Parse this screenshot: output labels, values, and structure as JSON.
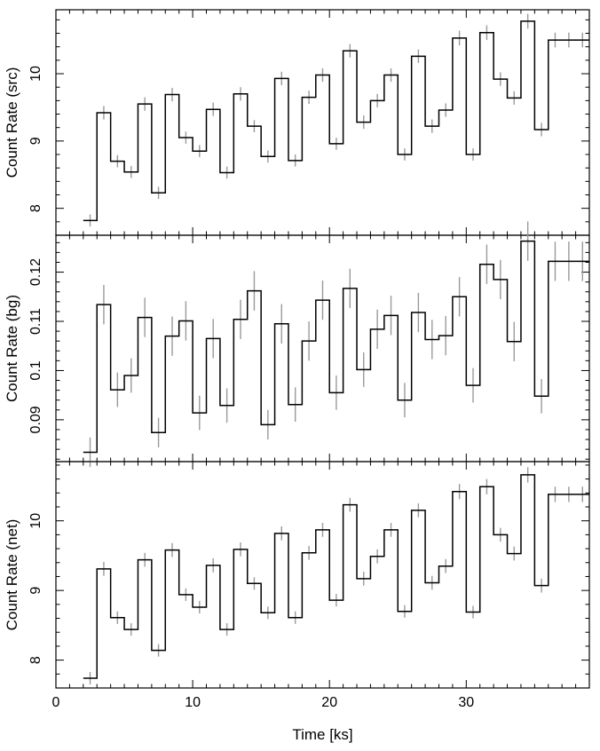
{
  "chart_data": [
    {
      "type": "line",
      "panel": "src",
      "xlabel": "",
      "ylabel": "Count Rate (src)",
      "xlim": [
        0,
        39
      ],
      "ylim": [
        7.6,
        10.95
      ],
      "yticks": [
        8,
        9,
        10
      ],
      "ytick_labels": [
        "8",
        "9",
        "10"
      ],
      "grid": false,
      "series": [
        {
          "bin_edges": [
            2.0,
            3.0,
            4.0,
            5.0,
            6.0,
            7.0,
            8.0,
            9.0,
            10.0,
            11.0,
            12.0,
            13.0,
            14.0,
            15.0,
            16.0,
            17.0,
            18.0,
            19.0,
            20.0,
            21.0,
            22.0,
            23.0,
            24.0,
            25.0,
            26.0,
            27.0,
            28.0,
            29.0,
            30.0,
            31.0,
            32.0,
            33.0,
            34.0,
            35.0,
            36.0,
            37.0,
            38.0,
            39.0
          ],
          "x": [
            2.5,
            3.5,
            4.5,
            5.5,
            6.5,
            7.5,
            8.5,
            9.5,
            10.5,
            11.5,
            12.5,
            13.5,
            14.5,
            15.5,
            16.5,
            17.5,
            18.5,
            19.5,
            20.5,
            21.5,
            22.5,
            23.5,
            24.5,
            25.5,
            26.5,
            27.5,
            28.5,
            29.5,
            30.5,
            31.5,
            32.5,
            33.5,
            34.5,
            35.5,
            36.5,
            37.5,
            38.5
          ],
          "values": [
            7.82,
            9.42,
            8.7,
            8.54,
            9.55,
            8.23,
            9.69,
            9.05,
            8.85,
            9.47,
            8.53,
            9.7,
            9.22,
            8.77,
            9.93,
            8.71,
            9.65,
            9.98,
            8.96,
            10.34,
            9.28,
            9.6,
            9.98,
            8.8,
            10.26,
            9.22,
            9.46,
            10.53,
            8.8,
            10.61,
            9.92,
            9.64,
            10.78,
            9.17,
            10.5,
            10.5,
            10.5
          ],
          "errors": [
            0.09,
            0.1,
            0.09,
            0.09,
            0.1,
            0.09,
            0.1,
            0.09,
            0.09,
            0.1,
            0.09,
            0.1,
            0.09,
            0.09,
            0.1,
            0.09,
            0.1,
            0.1,
            0.09,
            0.1,
            0.1,
            0.1,
            0.1,
            0.09,
            0.1,
            0.1,
            0.1,
            0.11,
            0.09,
            0.11,
            0.1,
            0.1,
            0.11,
            0.1,
            0.11,
            0.11,
            0.11
          ]
        }
      ]
    },
    {
      "type": "line",
      "panel": "bg",
      "xlabel": "",
      "ylabel": "Count Rate (bg)",
      "xlim": [
        0,
        39
      ],
      "ylim": [
        0.0815,
        0.1275
      ],
      "yticks": [
        0.09,
        0.1,
        0.11,
        0.12
      ],
      "ytick_labels": [
        "0.09",
        "0.1",
        "0.11",
        "0.12"
      ],
      "grid": false,
      "series": [
        {
          "bin_edges": [
            2.0,
            3.0,
            4.0,
            5.0,
            6.0,
            7.0,
            8.0,
            9.0,
            10.0,
            11.0,
            12.0,
            13.0,
            14.0,
            15.0,
            16.0,
            17.0,
            18.0,
            19.0,
            20.0,
            21.0,
            22.0,
            23.0,
            24.0,
            25.0,
            26.0,
            27.0,
            28.0,
            29.0,
            30.0,
            31.0,
            32.0,
            33.0,
            34.0,
            35.0,
            36.0,
            37.0,
            38.0,
            39.0
          ],
          "x": [
            2.5,
            3.5,
            4.5,
            5.5,
            6.5,
            7.5,
            8.5,
            9.5,
            10.5,
            11.5,
            12.5,
            13.5,
            14.5,
            15.5,
            16.5,
            17.5,
            18.5,
            19.5,
            20.5,
            21.5,
            22.5,
            23.5,
            24.5,
            25.5,
            26.5,
            27.5,
            28.5,
            29.5,
            30.5,
            31.5,
            32.5,
            33.5,
            34.5,
            35.5,
            36.5,
            37.5,
            38.5
          ],
          "values": [
            0.0834,
            0.1134,
            0.0961,
            0.099,
            0.1108,
            0.0874,
            0.107,
            0.1101,
            0.0914,
            0.1065,
            0.0929,
            0.1104,
            0.1162,
            0.089,
            0.1095,
            0.0931,
            0.106,
            0.1143,
            0.0955,
            0.1167,
            0.1002,
            0.1084,
            0.1112,
            0.094,
            0.1118,
            0.1063,
            0.1071,
            0.115,
            0.097,
            0.1216,
            0.1185,
            0.1059,
            0.1263,
            0.0948,
            0.1222,
            0.1222,
            0.1222
          ],
          "errors": [
            0.003,
            0.004,
            0.0035,
            0.0035,
            0.004,
            0.003,
            0.004,
            0.004,
            0.0035,
            0.004,
            0.0035,
            0.004,
            0.004,
            0.003,
            0.004,
            0.0035,
            0.004,
            0.004,
            0.0035,
            0.004,
            0.0035,
            0.004,
            0.004,
            0.0035,
            0.004,
            0.004,
            0.004,
            0.004,
            0.0035,
            0.004,
            0.004,
            0.004,
            0.004,
            0.0035,
            0.004,
            0.004,
            0.004
          ]
        }
      ]
    },
    {
      "type": "line",
      "panel": "net",
      "xlabel": "Time [ks]",
      "ylabel": "Count Rate (net)",
      "xlim": [
        0,
        39
      ],
      "ylim": [
        7.6,
        10.85
      ],
      "yticks": [
        8,
        9,
        10
      ],
      "ytick_labels": [
        "8",
        "9",
        "10"
      ],
      "xticks": [
        0,
        10,
        20,
        30
      ],
      "xtick_labels": [
        "0",
        "10",
        "20",
        "30"
      ],
      "grid": false,
      "series": [
        {
          "bin_edges": [
            2.0,
            3.0,
            4.0,
            5.0,
            6.0,
            7.0,
            8.0,
            9.0,
            10.0,
            11.0,
            12.0,
            13.0,
            14.0,
            15.0,
            16.0,
            17.0,
            18.0,
            19.0,
            20.0,
            21.0,
            22.0,
            23.0,
            24.0,
            25.0,
            26.0,
            27.0,
            28.0,
            29.0,
            30.0,
            31.0,
            32.0,
            33.0,
            34.0,
            35.0,
            36.0,
            37.0,
            38.0,
            39.0
          ],
          "x": [
            2.5,
            3.5,
            4.5,
            5.5,
            6.5,
            7.5,
            8.5,
            9.5,
            10.5,
            11.5,
            12.5,
            13.5,
            14.5,
            15.5,
            16.5,
            17.5,
            18.5,
            19.5,
            20.5,
            21.5,
            22.5,
            23.5,
            24.5,
            25.5,
            26.5,
            27.5,
            28.5,
            29.5,
            30.5,
            31.5,
            32.5,
            33.5,
            34.5,
            35.5,
            36.5,
            37.5,
            38.5
          ],
          "values": [
            7.74,
            9.31,
            8.61,
            8.44,
            9.44,
            8.14,
            9.58,
            8.94,
            8.76,
            9.36,
            8.44,
            9.59,
            9.1,
            8.68,
            9.82,
            8.61,
            9.54,
            9.87,
            8.86,
            10.23,
            9.17,
            9.49,
            9.87,
            8.7,
            10.15,
            9.11,
            9.35,
            10.42,
            8.69,
            10.49,
            9.8,
            9.53,
            10.66,
            9.07,
            10.38,
            10.38,
            10.38
          ],
          "errors": [
            0.09,
            0.1,
            0.09,
            0.09,
            0.1,
            0.09,
            0.1,
            0.09,
            0.09,
            0.1,
            0.09,
            0.1,
            0.09,
            0.09,
            0.1,
            0.09,
            0.1,
            0.1,
            0.09,
            0.1,
            0.1,
            0.1,
            0.1,
            0.09,
            0.1,
            0.1,
            0.1,
            0.11,
            0.09,
            0.11,
            0.1,
            0.1,
            0.11,
            0.1,
            0.11,
            0.11,
            0.11
          ]
        }
      ]
    }
  ]
}
